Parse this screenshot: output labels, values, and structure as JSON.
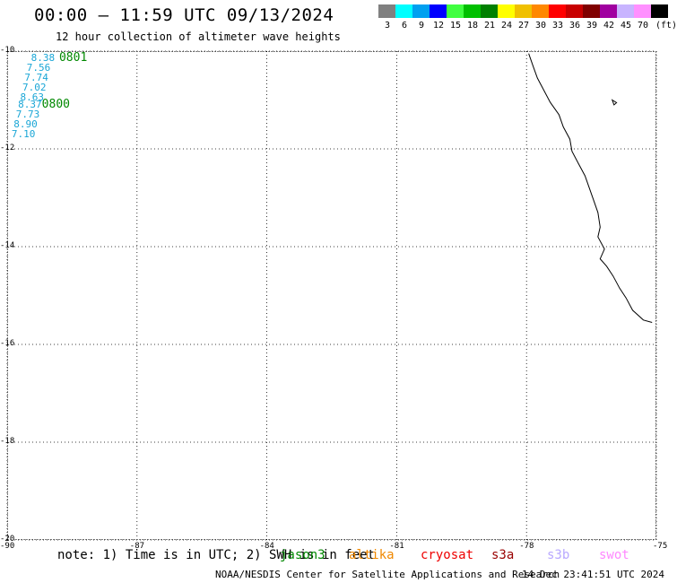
{
  "title": "00:00 – 11:59 UTC 09/13/2024",
  "subtitle": "12 hour collection of altimeter wave heights",
  "legend": {
    "unit": "(ft)",
    "bins": [
      {
        "label": "3",
        "color": "#808080"
      },
      {
        "label": "6",
        "color": "#00ffff"
      },
      {
        "label": "9",
        "color": "#00a0f0"
      },
      {
        "label": "12",
        "color": "#0000ff"
      },
      {
        "label": "15",
        "color": "#40ff40"
      },
      {
        "label": "18",
        "color": "#00c000"
      },
      {
        "label": "21",
        "color": "#008000"
      },
      {
        "label": "24",
        "color": "#ffff00"
      },
      {
        "label": "27",
        "color": "#f0c000"
      },
      {
        "label": "30",
        "color": "#ff8800"
      },
      {
        "label": "33",
        "color": "#ff0000"
      },
      {
        "label": "36",
        "color": "#c80000"
      },
      {
        "label": "39",
        "color": "#800000"
      },
      {
        "label": "42",
        "color": "#a000a0"
      },
      {
        "label": "45",
        "color": "#c8b4ff"
      },
      {
        "label": "70",
        "color": "#ff90ff"
      },
      {
        "label": "",
        "color": "#000000"
      }
    ]
  },
  "map": {
    "lon_range": [
      -90,
      -75
    ],
    "lat_range": [
      -20,
      -10
    ],
    "lon_ticks": [
      "-90",
      "-87",
      "-84",
      "-81",
      "-78",
      "-75"
    ],
    "lat_ticks": [
      "-10",
      "-12",
      "-14",
      "-16",
      "-18",
      "-20"
    ],
    "coastline": [
      [
        -77.95,
        -10.05
      ],
      [
        -77.85,
        -10.3
      ],
      [
        -77.75,
        -10.55
      ],
      [
        -77.6,
        -10.8
      ],
      [
        -77.45,
        -11.05
      ],
      [
        -77.25,
        -11.3
      ],
      [
        -77.15,
        -11.55
      ],
      [
        -77.0,
        -11.8
      ],
      [
        -76.95,
        -12.05
      ],
      [
        -76.8,
        -12.3
      ],
      [
        -76.65,
        -12.55
      ],
      [
        -76.55,
        -12.8
      ],
      [
        -76.45,
        -13.05
      ],
      [
        -76.35,
        -13.3
      ],
      [
        -76.3,
        -13.6
      ],
      [
        -76.35,
        -13.8
      ],
      [
        -76.2,
        -14.05
      ],
      [
        -76.3,
        -14.25
      ],
      [
        -76.15,
        -14.4
      ],
      [
        -76.0,
        -14.6
      ],
      [
        -75.85,
        -14.85
      ],
      [
        -75.7,
        -15.05
      ],
      [
        -75.55,
        -15.3
      ],
      [
        -75.3,
        -15.5
      ],
      [
        -75.1,
        -15.55
      ]
    ],
    "island": [
      [
        -76.02,
        -11.0
      ],
      [
        -75.92,
        -11.1
      ]
    ],
    "wave_heights": [
      {
        "lon": -89.2,
        "lat": -10.15,
        "value": "8.38"
      },
      {
        "lon": -89.3,
        "lat": -10.35,
        "value": "7.56"
      },
      {
        "lon": -89.35,
        "lat": -10.55,
        "value": "7.74"
      },
      {
        "lon": -89.4,
        "lat": -10.75,
        "value": "7.02"
      },
      {
        "lon": -89.45,
        "lat": -10.95,
        "value": "8.63"
      },
      {
        "lon": -89.5,
        "lat": -11.1,
        "value": "8.37"
      },
      {
        "lon": -89.55,
        "lat": -11.3,
        "value": "7.73"
      },
      {
        "lon": -89.6,
        "lat": -11.5,
        "value": "8.90"
      },
      {
        "lon": -89.65,
        "lat": -11.7,
        "value": "7.10"
      }
    ],
    "passes": [
      {
        "lon": -88.55,
        "lat": -10.15,
        "label": "0801"
      },
      {
        "lon": -88.95,
        "lat": -11.1,
        "label": "0800"
      }
    ]
  },
  "note": "note: 1) Time is in UTC; 2) SWH is in feet",
  "satellites": [
    {
      "name": "jason3",
      "color": "#008800"
    },
    {
      "name": "altika",
      "color": "#f08800"
    },
    {
      "name": "cryosat",
      "color": "#ee0000"
    },
    {
      "name": "s3a",
      "color": "#990000"
    },
    {
      "name": "s3b",
      "color": "#b8a8ff"
    },
    {
      "name": "swot",
      "color": "#ff88ff"
    }
  ],
  "credit": "NOAA/NESDIS Center for Satellite Applications and Research",
  "timestamp": "14 Dec 23:41:51 UTC 2024"
}
